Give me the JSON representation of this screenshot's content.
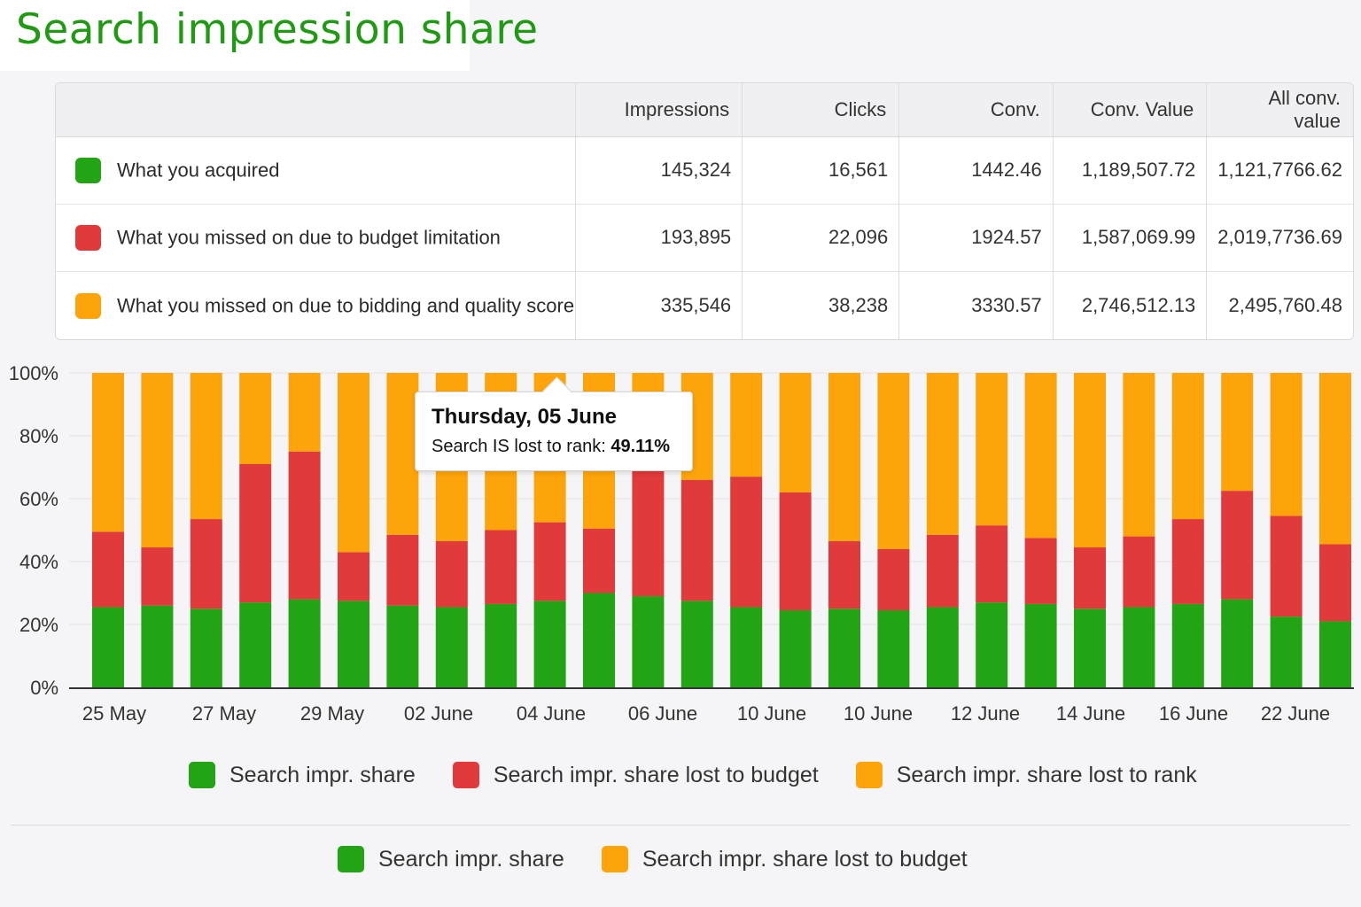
{
  "title": "Search impression share",
  "table": {
    "headers": [
      "",
      "Impressions",
      "Clicks",
      "Conv.",
      "Conv. Value",
      "All conv. value"
    ],
    "rows": [
      {
        "color": "#22a414",
        "label": "What you acquired",
        "values": [
          "145,324",
          "16,561",
          "1442.46",
          "1,189,507.72",
          "1,121,7766.62"
        ]
      },
      {
        "color": "#e03a3a",
        "label": "What you missed on due to budget limitation",
        "values": [
          "193,895",
          "22,096",
          "1924.57",
          "1,587,069.99",
          "2,019,7736.69"
        ]
      },
      {
        "color": "#fca40a",
        "label": "What you missed on due to bidding and quality score",
        "values": [
          "335,546",
          "38,238",
          "3330.57",
          "2,746,512.13",
          "2,495,760.48"
        ]
      }
    ]
  },
  "chart_data": {
    "type": "bar",
    "stacked": true,
    "ylim": [
      0,
      100
    ],
    "y_ticks": [
      "0%",
      "20%",
      "40%",
      "60%",
      "80%",
      "100%"
    ],
    "x_tick_labels": [
      "25 May",
      "27 May",
      "29 May",
      "02 June",
      "04 June",
      "06 June",
      "10 June",
      "10 June",
      "12 June",
      "14 June",
      "16 June",
      "22 June"
    ],
    "series": [
      {
        "name": "Search impr. share",
        "color": "#22a414",
        "values": [
          25.5,
          26,
          25,
          27,
          28,
          27.5,
          26,
          25.5,
          26.5,
          27.5,
          30,
          29,
          27.5,
          25.5,
          24.5,
          25,
          24.5,
          25.5,
          27,
          26.5,
          25,
          25.5,
          26.5,
          28,
          22.5,
          21
        ]
      },
      {
        "name": "Search impr. share lost to budget",
        "color": "#e03a3a",
        "values": [
          24,
          18.5,
          28.5,
          44,
          47,
          15.5,
          22.5,
          21,
          23.5,
          25,
          20.5,
          40,
          38.5,
          41.5,
          37.5,
          21.5,
          19.5,
          23,
          24.5,
          21,
          19.5,
          22.5,
          27,
          34.5,
          32,
          24.5
        ]
      },
      {
        "name": "Search impr. share lost to rank",
        "color": "#fca40a",
        "values": [
          50.5,
          55.5,
          46.5,
          29,
          25,
          57,
          51.5,
          53.5,
          50,
          47.5,
          49.5,
          31,
          34,
          33,
          38,
          53.5,
          56,
          51.5,
          48.5,
          52.5,
          55.5,
          52,
          46.5,
          37.5,
          45.5,
          54.5
        ]
      }
    ],
    "grid": true
  },
  "tooltip": {
    "date": "Thursday, 05 June",
    "label": "Search IS lost to rank:",
    "value": "49.11%"
  },
  "legend_main": [
    "Search impr. share",
    "Search impr. share lost to budget",
    "Search impr. share lost to rank"
  ],
  "legend_secondary": [
    "Search impr. share",
    "Search impr. share lost to budget"
  ],
  "colors": {
    "green": "#22a414",
    "red": "#e03a3a",
    "orange": "#fca40a"
  }
}
